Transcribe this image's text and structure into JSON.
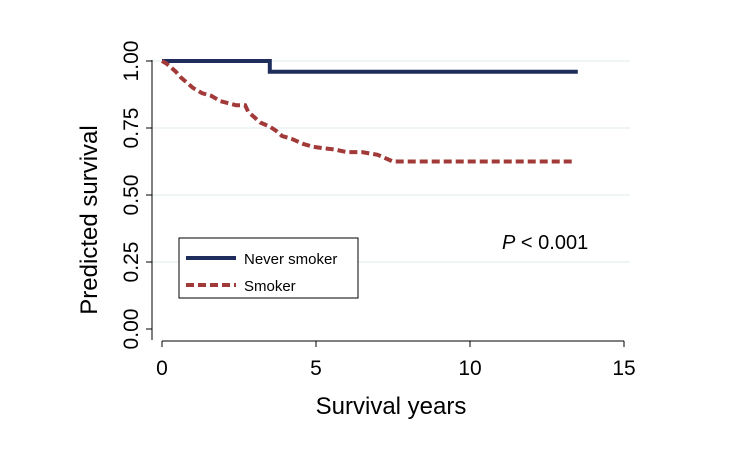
{
  "chart_data": {
    "type": "line",
    "xlabel": "Survival years",
    "ylabel": "Predicted survival",
    "xlim": [
      0,
      15
    ],
    "ylim": [
      0,
      1
    ],
    "xticks": [
      "0",
      "5",
      "10",
      "15"
    ],
    "yticks": [
      "0.00",
      "0.25",
      "0.50",
      "0.75",
      "1.00"
    ],
    "grid": "horizontal",
    "legend_position": "bottom-left",
    "annotation": {
      "italic": "P",
      "rest": " < 0.001"
    },
    "series": [
      {
        "name": "Never smoker",
        "color": "#1f2d5c",
        "style": "solid",
        "step": true,
        "points": [
          [
            0,
            1.0
          ],
          [
            3.5,
            1.0
          ],
          [
            3.5,
            0.96
          ],
          [
            13.5,
            0.96
          ]
        ]
      },
      {
        "name": "Smoker",
        "color": "#a33a3a",
        "style": "dashed",
        "step": true,
        "points": [
          [
            0,
            1.0
          ],
          [
            0.15,
            0.99
          ],
          [
            0.3,
            0.975
          ],
          [
            0.45,
            0.96
          ],
          [
            0.6,
            0.94
          ],
          [
            0.8,
            0.92
          ],
          [
            1.0,
            0.9
          ],
          [
            1.3,
            0.88
          ],
          [
            1.6,
            0.87
          ],
          [
            1.9,
            0.85
          ],
          [
            2.4,
            0.835
          ],
          [
            2.7,
            0.835
          ],
          [
            2.8,
            0.81
          ],
          [
            3.0,
            0.79
          ],
          [
            3.2,
            0.77
          ],
          [
            3.5,
            0.755
          ],
          [
            3.7,
            0.74
          ],
          [
            3.9,
            0.72
          ],
          [
            4.2,
            0.71
          ],
          [
            4.4,
            0.7
          ],
          [
            4.6,
            0.69
          ],
          [
            4.9,
            0.68
          ],
          [
            5.2,
            0.675
          ],
          [
            5.6,
            0.67
          ],
          [
            6.0,
            0.66
          ],
          [
            6.5,
            0.66
          ],
          [
            7.0,
            0.65
          ],
          [
            7.2,
            0.64
          ],
          [
            7.5,
            0.625
          ],
          [
            13.4,
            0.625
          ]
        ]
      }
    ]
  }
}
